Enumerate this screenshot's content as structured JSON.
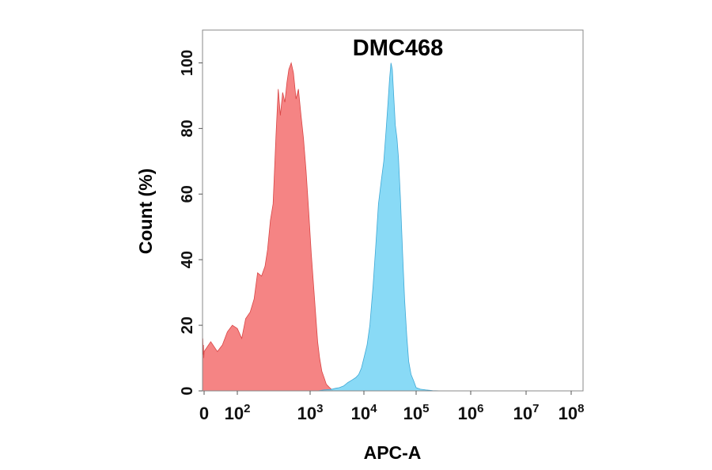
{
  "chart_data": {
    "type": "area",
    "title": "DMC468",
    "xlabel": "APC-A",
    "ylabel": "Count  (%)",
    "x_scale": "biexponential",
    "xlim": [
      -100,
      100000000
    ],
    "ylim": [
      0,
      110
    ],
    "x_ticks": [
      {
        "value": 0,
        "base": "0",
        "exp": ""
      },
      {
        "value": 100,
        "base": "10",
        "exp": "2"
      },
      {
        "value": 1000,
        "base": "10",
        "exp": "3"
      },
      {
        "value": 10000,
        "base": "10",
        "exp": "4"
      },
      {
        "value": 100000,
        "base": "10",
        "exp": "5"
      },
      {
        "value": 1000000,
        "base": "10",
        "exp": "6"
      },
      {
        "value": 10000000,
        "base": "10",
        "exp": "7"
      },
      {
        "value": 100000000,
        "base": "10",
        "exp": "8"
      }
    ],
    "y_ticks": [
      0,
      20,
      40,
      60,
      80,
      100
    ],
    "grid": false,
    "legend": "none",
    "series": [
      {
        "color": "#f47a7a",
        "points": [
          [
            -100,
            12
          ],
          [
            -80,
            16
          ],
          [
            -60,
            11
          ],
          [
            -40,
            14
          ],
          [
            -20,
            10
          ],
          [
            0,
            12
          ],
          [
            20,
            15
          ],
          [
            40,
            12
          ],
          [
            55,
            14
          ],
          [
            70,
            18
          ],
          [
            85,
            20
          ],
          [
            100,
            19
          ],
          [
            115,
            16
          ],
          [
            130,
            22
          ],
          [
            150,
            24
          ],
          [
            170,
            28
          ],
          [
            190,
            36
          ],
          [
            215,
            35
          ],
          [
            240,
            38
          ],
          [
            260,
            43
          ],
          [
            285,
            52
          ],
          [
            310,
            57
          ],
          [
            340,
            78
          ],
          [
            365,
            92
          ],
          [
            390,
            84
          ],
          [
            420,
            91
          ],
          [
            450,
            88
          ],
          [
            480,
            94
          ],
          [
            510,
            98
          ],
          [
            550,
            100
          ],
          [
            590,
            97
          ],
          [
            640,
            89
          ],
          [
            690,
            92
          ],
          [
            750,
            84
          ],
          [
            810,
            77
          ],
          [
            880,
            67
          ],
          [
            960,
            54
          ],
          [
            1050,
            42
          ],
          [
            1150,
            33
          ],
          [
            1260,
            24
          ],
          [
            1380,
            15
          ],
          [
            1500,
            10
          ],
          [
            1650,
            6
          ],
          [
            1820,
            4
          ],
          [
            2000,
            2
          ],
          [
            2300,
            1
          ],
          [
            2700,
            0
          ]
        ]
      },
      {
        "color": "#7fd7f5",
        "points": [
          [
            1400,
            0
          ],
          [
            1800,
            0.3
          ],
          [
            2400,
            0.4
          ],
          [
            3000,
            0.8
          ],
          [
            3500,
            1.0
          ],
          [
            4200,
            1.5
          ],
          [
            5000,
            2.5
          ],
          [
            6000,
            3.3
          ],
          [
            7000,
            4
          ],
          [
            8000,
            5
          ],
          [
            9000,
            7
          ],
          [
            10000,
            10
          ],
          [
            11500,
            14
          ],
          [
            13000,
            20
          ],
          [
            15000,
            32
          ],
          [
            17000,
            45
          ],
          [
            19000,
            57
          ],
          [
            21500,
            64
          ],
          [
            24000,
            70
          ],
          [
            26500,
            79
          ],
          [
            29000,
            88
          ],
          [
            31000,
            95
          ],
          [
            33000,
            100
          ],
          [
            35000,
            98
          ],
          [
            37500,
            89
          ],
          [
            40000,
            81
          ],
          [
            43000,
            77
          ],
          [
            46000,
            71
          ],
          [
            50000,
            59
          ],
          [
            55000,
            42
          ],
          [
            60000,
            28
          ],
          [
            66000,
            17
          ],
          [
            72000,
            9
          ],
          [
            80000,
            5
          ],
          [
            90000,
            3
          ],
          [
            100000,
            1
          ],
          [
            120000,
            0.5
          ],
          [
            150000,
            0.3
          ],
          [
            200000,
            0.1
          ],
          [
            300000,
            0
          ]
        ]
      }
    ]
  }
}
